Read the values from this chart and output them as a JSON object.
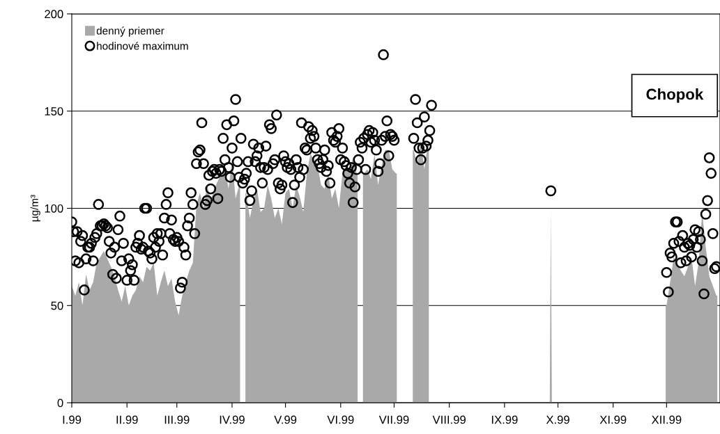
{
  "chart_data": {
    "type": "area",
    "ylabel": "µg/m³",
    "annotations": [
      "Chopok"
    ],
    "xlim": [
      "1999-01-01",
      "1999-12-31"
    ],
    "xticks": [
      {
        "value": "1999-01-01",
        "label": "I.99"
      },
      {
        "value": "1999-02-01",
        "label": "II.99"
      },
      {
        "value": "1999-03-01",
        "label": "III.99"
      },
      {
        "value": "1999-04-01",
        "label": "IV.99"
      },
      {
        "value": "1999-05-01",
        "label": "V.99"
      },
      {
        "value": "1999-06-01",
        "label": "VI.99"
      },
      {
        "value": "1999-07-01",
        "label": "VII.99"
      },
      {
        "value": "1999-08-01",
        "label": "VIII.99"
      },
      {
        "value": "1999-09-01",
        "label": "IX.99"
      },
      {
        "value": "1999-10-01",
        "label": "X.99"
      },
      {
        "value": "1999-11-01",
        "label": "XI.99"
      },
      {
        "value": "1999-12-01",
        "label": "XII.99"
      }
    ],
    "ylim": [
      0,
      200
    ],
    "yticks": [
      0,
      50,
      100,
      150,
      200
    ],
    "grid": "y",
    "legend": "top left",
    "series": [
      {
        "name": "denný priemer",
        "color": "#a9a9a9",
        "x": [
          "1999-01-01",
          "1999-01-03",
          "1999-01-05",
          "1999-01-07",
          "1999-01-09",
          "1999-01-11",
          "1999-01-13",
          "1999-01-15",
          "1999-01-17",
          "1999-01-19",
          "1999-01-21",
          "1999-01-23",
          "1999-01-25",
          "1999-01-27",
          "1999-01-29",
          "1999-01-31",
          "1999-02-02",
          "1999-02-04",
          "1999-02-06",
          "1999-02-08",
          "1999-02-10",
          "1999-02-12",
          "1999-02-14",
          "1999-02-16",
          "1999-02-18",
          "1999-02-20",
          "1999-02-22",
          "1999-02-24",
          "1999-02-26",
          "1999-02-28",
          "1999-03-02",
          "1999-03-04",
          "1999-03-06",
          "1999-03-08",
          "1999-03-10",
          "1999-03-12",
          "1999-03-14",
          "1999-03-16",
          "1999-03-18",
          "1999-03-20",
          "1999-03-22",
          "1999-03-24",
          "1999-03-26",
          "1999-03-28",
          "1999-03-30",
          "1999-04-01",
          "1999-04-03",
          "1999-04-05",
          "1999-04-07",
          "1999-04-09",
          "1999-04-11",
          "1999-04-13",
          "1999-04-15",
          "1999-04-17",
          "1999-04-19",
          "1999-04-21",
          "1999-04-23",
          "1999-04-25",
          "1999-04-27",
          "1999-04-29",
          "1999-05-01",
          "1999-05-03",
          "1999-05-05",
          "1999-05-07",
          "1999-05-09",
          "1999-05-11",
          "1999-05-13",
          "1999-05-15",
          "1999-05-17",
          "1999-05-19",
          "1999-05-21",
          "1999-05-23",
          "1999-05-25",
          "1999-05-27",
          "1999-05-29",
          "1999-05-31",
          "1999-06-02",
          "1999-06-04",
          "1999-06-06",
          "1999-06-08",
          "1999-06-10",
          "1999-06-12",
          "1999-06-14",
          "1999-06-16",
          "1999-06-18",
          "1999-06-20",
          "1999-06-22",
          "1999-06-24",
          "1999-06-26",
          "1999-06-28",
          "1999-06-30",
          "1999-07-02",
          "1999-07-04",
          "1999-07-12",
          "1999-07-14",
          "1999-07-16",
          "1999-07-18",
          "1999-07-20",
          "1999-07-22",
          "1999-07-24",
          "1999-09-26",
          "1999-09-27",
          "1999-09-28",
          "1999-11-30",
          "1999-12-01",
          "1999-12-03",
          "1999-12-05",
          "1999-12-07",
          "1999-12-09",
          "1999-12-11",
          "1999-12-13",
          "1999-12-15",
          "1999-12-17",
          "1999-12-19",
          "1999-12-21",
          "1999-12-23",
          "1999-12-25",
          "1999-12-27",
          "1999-12-29"
        ],
        "values": [
          60,
          55,
          62,
          50,
          66,
          58,
          62,
          72,
          75,
          78,
          74,
          70,
          65,
          58,
          52,
          60,
          50,
          55,
          58,
          65,
          62,
          70,
          68,
          72,
          55,
          62,
          68,
          60,
          64,
          52,
          45,
          55,
          62,
          68,
          72,
          102,
          108,
          100,
          112,
          104,
          110,
          114,
          118,
          122,
          110,
          125,
          105,
          112,
          null,
          108,
          95,
          104,
          110,
          98,
          100,
          112,
          105,
          95,
          100,
          92,
          108,
          110,
          100,
          112,
          106,
          98,
          118,
          128,
          125,
          122,
          112,
          110,
          118,
          105,
          110,
          100,
          118,
          122,
          120,
          126,
          118,
          null,
          118,
          120,
          115,
          128,
          112,
          122,
          130,
          130,
          120,
          118,
          null,
          130,
          122,
          135,
          120,
          134,
          null,
          null,
          null,
          98,
          null,
          null,
          50,
          62,
          75,
          72,
          68,
          65,
          70,
          75,
          60,
          72,
          98,
          80,
          65,
          60,
          55
        ]
      },
      {
        "name": "hodinové maximum",
        "type": "scatter",
        "color": "#000000",
        "marker": "circle",
        "x": [
          "1999-01-01",
          "1999-01-02",
          "1999-01-03",
          "1999-01-04",
          "1999-01-05",
          "1999-01-06",
          "1999-01-07",
          "1999-01-08",
          "1999-01-09",
          "1999-01-10",
          "1999-01-11",
          "1999-01-12",
          "1999-01-13",
          "1999-01-14",
          "1999-01-15",
          "1999-01-16",
          "1999-01-17",
          "1999-01-18",
          "1999-01-19",
          "1999-01-20",
          "1999-01-21",
          "1999-01-22",
          "1999-01-23",
          "1999-01-24",
          "1999-01-25",
          "1999-01-26",
          "1999-01-27",
          "1999-01-28",
          "1999-01-29",
          "1999-01-30",
          "1999-02-01",
          "1999-02-02",
          "1999-02-03",
          "1999-02-04",
          "1999-02-05",
          "1999-02-06",
          "1999-02-07",
          "1999-02-08",
          "1999-02-09",
          "1999-02-10",
          "1999-02-11",
          "1999-02-12",
          "1999-02-13",
          "1999-02-14",
          "1999-02-15",
          "1999-02-16",
          "1999-02-17",
          "1999-02-18",
          "1999-02-19",
          "1999-02-20",
          "1999-02-21",
          "1999-02-22",
          "1999-02-23",
          "1999-02-24",
          "1999-02-25",
          "1999-02-26",
          "1999-02-27",
          "1999-02-28",
          "1999-03-01",
          "1999-03-02",
          "1999-03-03",
          "1999-03-04",
          "1999-03-05",
          "1999-03-06",
          "1999-03-07",
          "1999-03-08",
          "1999-03-09",
          "1999-03-10",
          "1999-03-11",
          "1999-03-12",
          "1999-03-13",
          "1999-03-14",
          "1999-03-15",
          "1999-03-16",
          "1999-03-17",
          "1999-03-18",
          "1999-03-19",
          "1999-03-20",
          "1999-03-21",
          "1999-03-22",
          "1999-03-23",
          "1999-03-24",
          "1999-03-25",
          "1999-03-26",
          "1999-03-27",
          "1999-03-28",
          "1999-03-29",
          "1999-03-30",
          "1999-03-31",
          "1999-04-01",
          "1999-04-02",
          "1999-04-03",
          "1999-04-04",
          "1999-04-05",
          "1999-04-06",
          "1999-04-07",
          "1999-04-08",
          "1999-04-09",
          "1999-04-10",
          "1999-04-11",
          "1999-04-12",
          "1999-04-13",
          "1999-04-14",
          "1999-04-15",
          "1999-04-16",
          "1999-04-17",
          "1999-04-18",
          "1999-04-19",
          "1999-04-20",
          "1999-04-21",
          "1999-04-22",
          "1999-04-23",
          "1999-04-24",
          "1999-04-25",
          "1999-04-26",
          "1999-04-27",
          "1999-04-28",
          "1999-04-29",
          "1999-04-30",
          "1999-05-01",
          "1999-05-02",
          "1999-05-03",
          "1999-05-04",
          "1999-05-05",
          "1999-05-06",
          "1999-05-07",
          "1999-05-08",
          "1999-05-09",
          "1999-05-10",
          "1999-05-11",
          "1999-05-12",
          "1999-05-13",
          "1999-05-14",
          "1999-05-15",
          "1999-05-16",
          "1999-05-17",
          "1999-05-18",
          "1999-05-19",
          "1999-05-20",
          "1999-05-21",
          "1999-05-22",
          "1999-05-23",
          "1999-05-24",
          "1999-05-25",
          "1999-05-26",
          "1999-05-27",
          "1999-05-28",
          "1999-05-29",
          "1999-05-30",
          "1999-05-31",
          "1999-06-01",
          "1999-06-02",
          "1999-06-03",
          "1999-06-04",
          "1999-06-05",
          "1999-06-06",
          "1999-06-07",
          "1999-06-08",
          "1999-06-09",
          "1999-06-10",
          "1999-06-11",
          "1999-06-12",
          "1999-06-13",
          "1999-06-14",
          "1999-06-15",
          "1999-06-16",
          "1999-06-17",
          "1999-06-18",
          "1999-06-19",
          "1999-06-20",
          "1999-06-21",
          "1999-06-22",
          "1999-06-23",
          "1999-06-24",
          "1999-06-25",
          "1999-06-26",
          "1999-06-27",
          "1999-06-28",
          "1999-06-29",
          "1999-06-30",
          "1999-07-01",
          "1999-07-12",
          "1999-07-13",
          "1999-07-14",
          "1999-07-15",
          "1999-07-16",
          "1999-07-17",
          "1999-07-18",
          "1999-07-19",
          "1999-07-20",
          "1999-07-21",
          "1999-07-22",
          "1999-09-27",
          "1999-12-01",
          "1999-12-02",
          "1999-12-03",
          "1999-12-04",
          "1999-12-05",
          "1999-12-06",
          "1999-12-07",
          "1999-12-08",
          "1999-12-09",
          "1999-12-10",
          "1999-12-11",
          "1999-12-12",
          "1999-12-13",
          "1999-12-14",
          "1999-12-15",
          "1999-12-16",
          "1999-12-17",
          "1999-12-18",
          "1999-12-19",
          "1999-12-20",
          "1999-12-21",
          "1999-12-22",
          "1999-12-23",
          "1999-12-24",
          "1999-12-25",
          "1999-12-26",
          "1999-12-27",
          "1999-12-28",
          "1999-12-29"
        ],
        "values": [
          93,
          88,
          73,
          88,
          72,
          83,
          86,
          58,
          74,
          80,
          80,
          82,
          73,
          85,
          87,
          102,
          91,
          91,
          92,
          91,
          90,
          83,
          77,
          66,
          80,
          64,
          89,
          96,
          73,
          82,
          63,
          74,
          68,
          71,
          63,
          80,
          82,
          86,
          79,
          80,
          100,
          100,
          78,
          77,
          74,
          85,
          80,
          87,
          83,
          87,
          76,
          95,
          102,
          108,
          87,
          94,
          84,
          83,
          85,
          83,
          59,
          62,
          80,
          76,
          91,
          95,
          108,
          102,
          87,
          123,
          129,
          130,
          144,
          123,
          102,
          104,
          117,
          110,
          119,
          120,
          118,
          105,
          120,
          119,
          136,
          125,
          143,
          121,
          116,
          131,
          145,
          156,
          124,
          116,
          136,
          113,
          115,
          118,
          124,
          104,
          109,
          133,
          124,
          127,
          131,
          121,
          113,
          121,
          132,
          120,
          143,
          141,
          123,
          125,
          148,
          113,
          110,
          112,
          127,
          124,
          121,
          123,
          120,
          103,
          112,
          125,
          121,
          116,
          144,
          120,
          131,
          130,
          142,
          136,
          140,
          137,
          131,
          125,
          123,
          121,
          125,
          130,
          119,
          122,
          113,
          139,
          135,
          134,
          137,
          141,
          125,
          131,
          124,
          122,
          118,
          113,
          121,
          103,
          111,
          120,
          125,
          134,
          131,
          136,
          120,
          138,
          140,
          134,
          139,
          135,
          130,
          119,
          123,
          135,
          179,
          137,
          145,
          127,
          138,
          137,
          135,
          136,
          156,
          144,
          131,
          125,
          131,
          147,
          132,
          135,
          140,
          153,
          109,
          67,
          57,
          77,
          75,
          82,
          93,
          93,
          83,
          72,
          86,
          80,
          73,
          82,
          81,
          75,
          84,
          89,
          80,
          88,
          84,
          73,
          56,
          97,
          104,
          126,
          118,
          87,
          69,
          70
        ]
      }
    ]
  }
}
